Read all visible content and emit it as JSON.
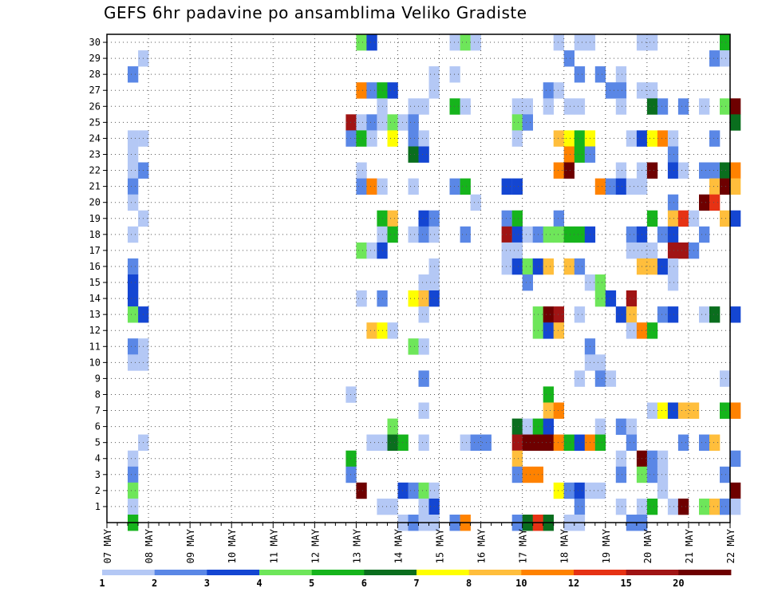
{
  "title": "GEFS 6hr padavine po ansamblima Veliko Gradiste",
  "chart_data": {
    "type": "heatmap",
    "title": "GEFS 6hr padavine po ansamblima Veliko Gradiste",
    "x_tick_labels": [
      "07 MAY",
      "08 MAY",
      "09 MAY",
      "10 MAY",
      "11 MAY",
      "12 MAY",
      "13 MAY",
      "14 MAY",
      "15 MAY",
      "16 MAY",
      "17 MAY",
      "18 MAY",
      "19 MAY",
      "20 MAY",
      "21 MAY",
      "22 MAY"
    ],
    "y_tick_labels": [
      "1",
      "2",
      "3",
      "4",
      "5",
      "6",
      "7",
      "8",
      "9",
      "10",
      "11",
      "12",
      "13",
      "14",
      "15",
      "16",
      "17",
      "18",
      "19",
      "20",
      "21",
      "22",
      "23",
      "24",
      "25",
      "26",
      "27",
      "28",
      "29",
      "30"
    ],
    "ylim": [
      0,
      30
    ],
    "grid": true,
    "colorbar": {
      "labels": [
        "1",
        "2",
        "3",
        "4",
        "5",
        "6",
        "7",
        "8",
        "10",
        "12",
        "15",
        "20"
      ],
      "colors": [
        "#b4c8f5",
        "#5a87e6",
        "#1446d2",
        "#6ee65a",
        "#16b41c",
        "#0a6e1e",
        "#ffff00",
        "#ffbe3c",
        "#ff8200",
        "#e63214",
        "#a01414",
        "#6e0000"
      ]
    },
    "cells": [
      [
        6,
        30,
        4
      ],
      [
        6.25,
        30,
        3
      ],
      [
        8.25,
        30,
        1
      ],
      [
        8.5,
        30,
        4
      ],
      [
        8.75,
        30,
        1
      ],
      [
        10.75,
        30,
        1
      ],
      [
        11.25,
        30,
        1
      ],
      [
        11.5,
        30,
        1
      ],
      [
        12.75,
        30,
        1
      ],
      [
        13,
        30,
        1
      ],
      [
        14.75,
        30,
        5
      ],
      [
        0.75,
        29,
        1
      ],
      [
        11,
        29,
        2
      ],
      [
        14.5,
        29,
        2
      ],
      [
        14.75,
        29,
        1
      ],
      [
        0.5,
        28,
        2
      ],
      [
        7.75,
        28,
        1
      ],
      [
        8.25,
        28,
        1
      ],
      [
        11.25,
        28,
        2
      ],
      [
        11.75,
        28,
        2
      ],
      [
        12.25,
        28,
        1
      ],
      [
        6,
        27,
        10
      ],
      [
        6.25,
        27,
        2
      ],
      [
        6.5,
        27,
        5
      ],
      [
        6.75,
        27,
        3
      ],
      [
        7.75,
        27,
        1
      ],
      [
        10.5,
        27,
        2
      ],
      [
        10.75,
        27,
        1
      ],
      [
        12,
        27,
        2
      ],
      [
        12.25,
        27,
        2
      ],
      [
        12.75,
        27,
        1
      ],
      [
        13,
        27,
        1
      ],
      [
        6.5,
        26,
        1
      ],
      [
        7.25,
        26,
        1
      ],
      [
        7.5,
        26,
        1
      ],
      [
        8.25,
        26,
        5
      ],
      [
        8.5,
        26,
        1
      ],
      [
        9.75,
        26,
        1
      ],
      [
        10,
        26,
        1
      ],
      [
        10.5,
        26,
        1
      ],
      [
        11,
        26,
        1
      ],
      [
        11.25,
        26,
        1
      ],
      [
        12.25,
        26,
        1
      ],
      [
        13,
        26,
        6
      ],
      [
        13.25,
        26,
        2
      ],
      [
        13.75,
        26,
        2
      ],
      [
        14.25,
        26,
        1
      ],
      [
        14.75,
        26,
        4
      ],
      [
        15,
        26,
        20
      ],
      [
        5.75,
        25,
        15
      ],
      [
        6,
        25,
        1
      ],
      [
        6.25,
        25,
        2
      ],
      [
        6.5,
        25,
        1
      ],
      [
        6.75,
        25,
        4
      ],
      [
        7,
        25,
        1
      ],
      [
        7.25,
        25,
        2
      ],
      [
        9.75,
        25,
        4
      ],
      [
        10,
        25,
        2
      ],
      [
        15,
        25,
        6
      ],
      [
        0.5,
        24,
        1
      ],
      [
        0.75,
        24,
        1
      ],
      [
        5.75,
        24,
        2
      ],
      [
        6,
        24,
        5
      ],
      [
        6.25,
        24,
        1
      ],
      [
        6.75,
        24,
        7
      ],
      [
        7.25,
        24,
        2
      ],
      [
        7.5,
        24,
        1
      ],
      [
        9.75,
        24,
        1
      ],
      [
        10.75,
        24,
        8
      ],
      [
        11,
        24,
        7
      ],
      [
        11.25,
        24,
        5
      ],
      [
        11.5,
        24,
        7
      ],
      [
        12.5,
        24,
        1
      ],
      [
        12.75,
        24,
        3
      ],
      [
        13,
        24,
        7
      ],
      [
        13.25,
        24,
        10
      ],
      [
        13.5,
        24,
        1
      ],
      [
        14.5,
        24,
        2
      ],
      [
        0.5,
        23,
        1
      ],
      [
        7.25,
        23,
        6
      ],
      [
        7.5,
        23,
        3
      ],
      [
        11,
        23,
        10
      ],
      [
        11.25,
        23,
        5
      ],
      [
        11.5,
        23,
        2
      ],
      [
        13.5,
        23,
        2
      ],
      [
        0.5,
        22,
        1
      ],
      [
        0.75,
        22,
        2
      ],
      [
        6,
        22,
        1
      ],
      [
        10.75,
        22,
        10
      ],
      [
        11,
        22,
        20
      ],
      [
        12.25,
        22,
        1
      ],
      [
        12.75,
        22,
        1
      ],
      [
        13,
        22,
        20
      ],
      [
        13.5,
        22,
        3
      ],
      [
        13.75,
        22,
        1
      ],
      [
        14.25,
        22,
        2
      ],
      [
        14.5,
        22,
        2
      ],
      [
        14.75,
        22,
        6
      ],
      [
        15,
        22,
        10
      ],
      [
        0.5,
        21,
        2
      ],
      [
        6,
        21,
        2
      ],
      [
        6.25,
        21,
        10
      ],
      [
        6.5,
        21,
        1
      ],
      [
        7.25,
        21,
        1
      ],
      [
        8.25,
        21,
        2
      ],
      [
        8.5,
        21,
        5
      ],
      [
        9.5,
        21,
        3
      ],
      [
        9.75,
        21,
        3
      ],
      [
        11.75,
        21,
        10
      ],
      [
        12,
        21,
        2
      ],
      [
        12.25,
        21,
        3
      ],
      [
        12.5,
        21,
        1
      ],
      [
        12.75,
        21,
        1
      ],
      [
        14.5,
        21,
        8
      ],
      [
        14.75,
        21,
        20
      ],
      [
        15,
        21,
        8
      ],
      [
        0.5,
        20,
        1
      ],
      [
        8.75,
        20,
        1
      ],
      [
        13.5,
        20,
        2
      ],
      [
        14.25,
        20,
        20
      ],
      [
        14.5,
        20,
        12
      ],
      [
        0.75,
        19,
        1
      ],
      [
        6.5,
        19,
        5
      ],
      [
        6.75,
        19,
        8
      ],
      [
        7.5,
        19,
        3
      ],
      [
        7.75,
        19,
        2
      ],
      [
        9.5,
        19,
        2
      ],
      [
        9.75,
        19,
        5
      ],
      [
        10.75,
        19,
        2
      ],
      [
        13,
        19,
        5
      ],
      [
        13.5,
        19,
        8
      ],
      [
        13.75,
        19,
        12
      ],
      [
        14,
        19,
        1
      ],
      [
        14.75,
        19,
        8
      ],
      [
        15,
        19,
        3
      ],
      [
        0.5,
        18,
        1
      ],
      [
        6.5,
        18,
        1
      ],
      [
        6.75,
        18,
        5
      ],
      [
        7.25,
        18,
        1
      ],
      [
        7.5,
        18,
        2
      ],
      [
        7.75,
        18,
        1
      ],
      [
        8.5,
        18,
        2
      ],
      [
        9.5,
        18,
        15
      ],
      [
        9.75,
        18,
        3
      ],
      [
        10,
        18,
        1
      ],
      [
        10.25,
        18,
        2
      ],
      [
        10.5,
        18,
        4
      ],
      [
        10.75,
        18,
        4
      ],
      [
        11,
        18,
        5
      ],
      [
        11.25,
        18,
        5
      ],
      [
        11.5,
        18,
        3
      ],
      [
        12.5,
        18,
        2
      ],
      [
        12.75,
        18,
        3
      ],
      [
        13.25,
        18,
        2
      ],
      [
        13.5,
        18,
        3
      ],
      [
        14.25,
        18,
        2
      ],
      [
        6,
        17,
        4
      ],
      [
        6.25,
        17,
        1
      ],
      [
        6.5,
        17,
        3
      ],
      [
        9.5,
        17,
        1
      ],
      [
        9.75,
        17,
        1
      ],
      [
        12.5,
        17,
        1
      ],
      [
        12.75,
        17,
        1
      ],
      [
        13,
        17,
        1
      ],
      [
        13.5,
        17,
        15
      ],
      [
        13.75,
        17,
        15
      ],
      [
        14,
        17,
        2
      ],
      [
        0.5,
        16,
        2
      ],
      [
        7.75,
        16,
        1
      ],
      [
        9.5,
        16,
        1
      ],
      [
        9.75,
        16,
        3
      ],
      [
        10,
        16,
        4
      ],
      [
        10.25,
        16,
        3
      ],
      [
        10.5,
        16,
        8
      ],
      [
        11,
        16,
        8
      ],
      [
        11.25,
        16,
        2
      ],
      [
        12.75,
        16,
        8
      ],
      [
        13,
        16,
        8
      ],
      [
        13.25,
        16,
        3
      ],
      [
        13.5,
        16,
        1
      ],
      [
        0.5,
        15,
        3
      ],
      [
        7.5,
        15,
        1
      ],
      [
        7.75,
        15,
        1
      ],
      [
        10,
        15,
        2
      ],
      [
        11.5,
        15,
        1
      ],
      [
        11.75,
        15,
        4
      ],
      [
        13.5,
        15,
        1
      ],
      [
        0.5,
        14,
        3
      ],
      [
        6,
        14,
        1
      ],
      [
        6.5,
        14,
        2
      ],
      [
        7.25,
        14,
        7
      ],
      [
        7.5,
        14,
        8
      ],
      [
        7.75,
        14,
        3
      ],
      [
        11.75,
        14,
        4
      ],
      [
        12,
        14,
        3
      ],
      [
        12.5,
        14,
        15
      ],
      [
        0.5,
        13,
        4
      ],
      [
        0.75,
        13,
        3
      ],
      [
        7.5,
        13,
        1
      ],
      [
        10.25,
        13,
        4
      ],
      [
        10.5,
        13,
        20
      ],
      [
        10.75,
        13,
        15
      ],
      [
        11.25,
        13,
        1
      ],
      [
        12.25,
        13,
        3
      ],
      [
        12.5,
        13,
        8
      ],
      [
        13.25,
        13,
        2
      ],
      [
        13.5,
        13,
        3
      ],
      [
        14.25,
        13,
        1
      ],
      [
        14.5,
        13,
        6
      ],
      [
        15,
        13,
        3
      ],
      [
        6.25,
        12,
        8
      ],
      [
        6.5,
        12,
        7
      ],
      [
        6.75,
        12,
        1
      ],
      [
        10.25,
        12,
        4
      ],
      [
        10.5,
        12,
        3
      ],
      [
        10.75,
        12,
        8
      ],
      [
        12.5,
        12,
        1
      ],
      [
        12.75,
        12,
        10
      ],
      [
        13,
        12,
        5
      ],
      [
        0.5,
        11,
        2
      ],
      [
        0.75,
        11,
        1
      ],
      [
        7.25,
        11,
        4
      ],
      [
        7.5,
        11,
        1
      ],
      [
        11.5,
        11,
        2
      ],
      [
        0.5,
        10,
        1
      ],
      [
        0.75,
        10,
        1
      ],
      [
        11.5,
        10,
        1
      ],
      [
        11.75,
        10,
        1
      ],
      [
        7.5,
        9,
        2
      ],
      [
        11.25,
        9,
        1
      ],
      [
        11.75,
        9,
        2
      ],
      [
        12,
        9,
        1
      ],
      [
        14.75,
        9,
        1
      ],
      [
        5.75,
        8,
        1
      ],
      [
        10.5,
        8,
        5
      ],
      [
        7.5,
        7,
        1
      ],
      [
        10.5,
        7,
        8
      ],
      [
        10.75,
        7,
        10
      ],
      [
        13,
        7,
        1
      ],
      [
        13.25,
        7,
        7
      ],
      [
        13.5,
        7,
        3
      ],
      [
        13.75,
        7,
        8
      ],
      [
        14,
        7,
        8
      ],
      [
        14.75,
        7,
        5
      ],
      [
        15,
        7,
        10
      ],
      [
        6.75,
        6,
        4
      ],
      [
        9.75,
        6,
        6
      ],
      [
        10,
        6,
        1
      ],
      [
        10.25,
        6,
        5
      ],
      [
        10.5,
        6,
        3
      ],
      [
        11.75,
        6,
        1
      ],
      [
        12.25,
        6,
        2
      ],
      [
        12.5,
        6,
        1
      ],
      [
        0.75,
        5,
        1
      ],
      [
        6.25,
        5,
        1
      ],
      [
        6.5,
        5,
        1
      ],
      [
        6.75,
        5,
        6
      ],
      [
        7,
        5,
        5
      ],
      [
        7.5,
        5,
        1
      ],
      [
        8.5,
        5,
        1
      ],
      [
        8.75,
        5,
        2
      ],
      [
        9,
        5,
        2
      ],
      [
        9.75,
        5,
        15
      ],
      [
        10,
        5,
        20
      ],
      [
        10.25,
        5,
        20
      ],
      [
        10.5,
        5,
        20
      ],
      [
        10.75,
        5,
        10
      ],
      [
        11,
        5,
        5
      ],
      [
        11.25,
        5,
        3
      ],
      [
        11.5,
        5,
        10
      ],
      [
        11.75,
        5,
        5
      ],
      [
        12.5,
        5,
        2
      ],
      [
        13.75,
        5,
        2
      ],
      [
        14.25,
        5,
        2
      ],
      [
        14.5,
        5,
        8
      ],
      [
        0.5,
        4,
        1
      ],
      [
        5.75,
        4,
        5
      ],
      [
        9.75,
        4,
        8
      ],
      [
        12.25,
        4,
        1
      ],
      [
        12.75,
        4,
        20
      ],
      [
        13,
        4,
        2
      ],
      [
        13.25,
        4,
        1
      ],
      [
        15,
        4,
        2
      ],
      [
        0.5,
        3,
        2
      ],
      [
        5.75,
        3,
        2
      ],
      [
        9.75,
        3,
        2
      ],
      [
        10,
        3,
        10
      ],
      [
        10.25,
        3,
        10
      ],
      [
        12.25,
        3,
        2
      ],
      [
        12.75,
        3,
        4
      ],
      [
        13,
        3,
        2
      ],
      [
        13.25,
        3,
        1
      ],
      [
        14.75,
        3,
        2
      ],
      [
        0.5,
        2,
        4
      ],
      [
        6,
        2,
        20
      ],
      [
        7,
        2,
        3
      ],
      [
        7.25,
        2,
        2
      ],
      [
        7.5,
        2,
        4
      ],
      [
        7.75,
        2,
        1
      ],
      [
        10.75,
        2,
        7
      ],
      [
        11,
        2,
        2
      ],
      [
        11.25,
        2,
        3
      ],
      [
        11.5,
        2,
        1
      ],
      [
        11.75,
        2,
        1
      ],
      [
        13.25,
        2,
        1
      ],
      [
        15,
        2,
        20
      ],
      [
        0.5,
        1,
        1
      ],
      [
        6.5,
        1,
        1
      ],
      [
        6.75,
        1,
        1
      ],
      [
        7.5,
        1,
        1
      ],
      [
        7.75,
        1,
        3
      ],
      [
        11.25,
        1,
        2
      ],
      [
        12.25,
        1,
        1
      ],
      [
        12.75,
        1,
        1
      ],
      [
        13,
        1,
        5
      ],
      [
        13.5,
        1,
        1
      ],
      [
        13.75,
        1,
        20
      ],
      [
        14.25,
        1,
        4
      ],
      [
        14.5,
        1,
        8
      ],
      [
        14.75,
        1,
        2
      ],
      [
        15,
        1,
        1
      ],
      [
        0.5,
        0,
        5
      ],
      [
        7,
        0,
        1
      ],
      [
        7.25,
        0,
        2
      ],
      [
        7.5,
        0,
        1
      ],
      [
        7.75,
        0,
        1
      ],
      [
        8.25,
        0,
        2
      ],
      [
        8.5,
        0,
        10
      ],
      [
        9.75,
        0,
        2
      ],
      [
        10,
        0,
        6
      ],
      [
        10.25,
        0,
        12
      ],
      [
        10.5,
        0,
        6
      ],
      [
        11,
        0,
        1
      ],
      [
        11.25,
        0,
        1
      ],
      [
        12.5,
        0,
        2
      ],
      [
        12.75,
        0,
        2
      ]
    ]
  }
}
